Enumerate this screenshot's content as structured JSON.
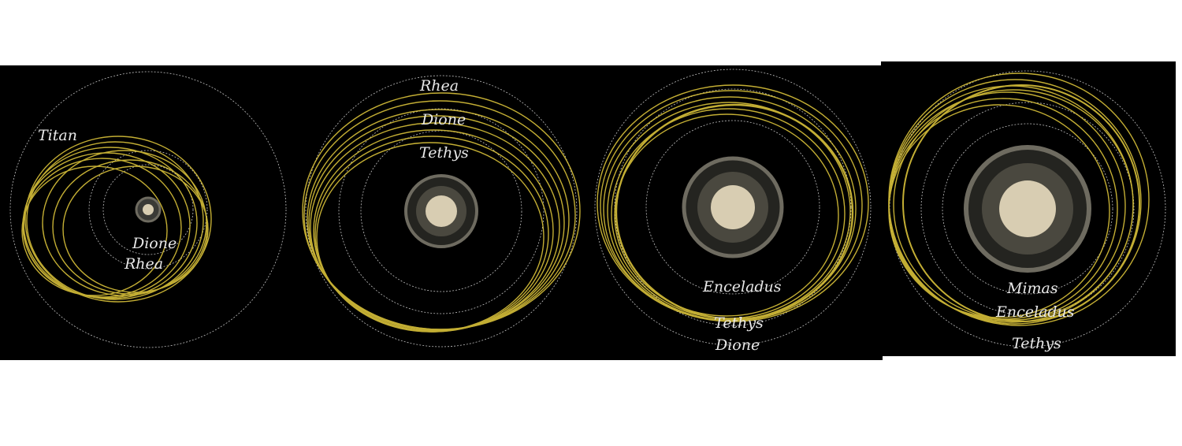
{
  "colors": {
    "background": "#000000",
    "orbit": "#bfbfbf",
    "trajectory": "#d9c13a",
    "saturn": "#d8cdb2",
    "rings": "#8a8678"
  },
  "panels": [
    {
      "labels": [
        "Titan",
        "Dione",
        "Rhea"
      ]
    },
    {
      "labels": [
        "Rhea",
        "Dione",
        "Tethys"
      ]
    },
    {
      "labels": [
        "Enceladus",
        "Tethys",
        "Dione"
      ]
    },
    {
      "labels": [
        "Mimas",
        "Enceladus",
        "Tethys"
      ]
    }
  ]
}
